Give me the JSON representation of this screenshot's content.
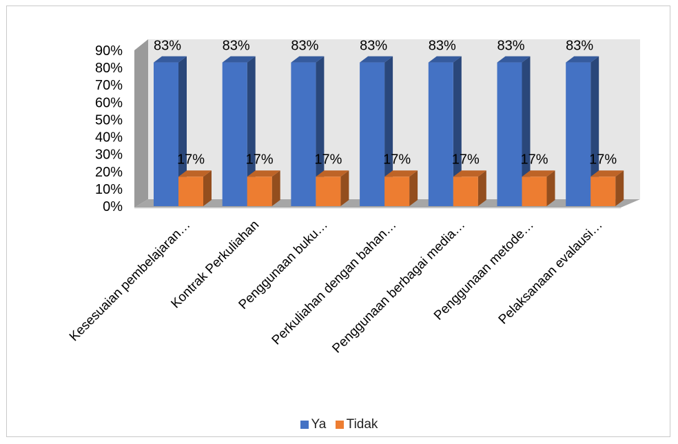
{
  "chart_data": {
    "type": "bar",
    "title": "",
    "xlabel": "",
    "ylabel": "",
    "categories": [
      "Kesesuaian pembelajaran…",
      "Kontrak Perkuliahan",
      "Penggunaan buku…",
      "Perkuliahan dengan bahan…",
      "Penggunaan berbagai media…",
      "Penggunaan metode…",
      "Pelaksanaan evalausi…"
    ],
    "series": [
      {
        "name": "Ya",
        "values": [
          83,
          83,
          83,
          83,
          83,
          83,
          83
        ],
        "labels": [
          "83%",
          "83%",
          "83%",
          "83%",
          "83%",
          "83%",
          "83%"
        ]
      },
      {
        "name": "Tidak",
        "values": [
          17,
          17,
          17,
          17,
          17,
          17,
          17
        ],
        "labels": [
          "17%",
          "17%",
          "17%",
          "17%",
          "17%",
          "17%",
          "17%"
        ]
      }
    ],
    "ylim": [
      0,
      90
    ],
    "yticks": [
      "0%",
      "10%",
      "20%",
      "30%",
      "40%",
      "50%",
      "60%",
      "70%",
      "80%",
      "90%"
    ],
    "grid": false,
    "legend_position": "bottom",
    "colors": {
      "Ya": "#4472C4",
      "Tidak": "#ED7D31"
    }
  }
}
